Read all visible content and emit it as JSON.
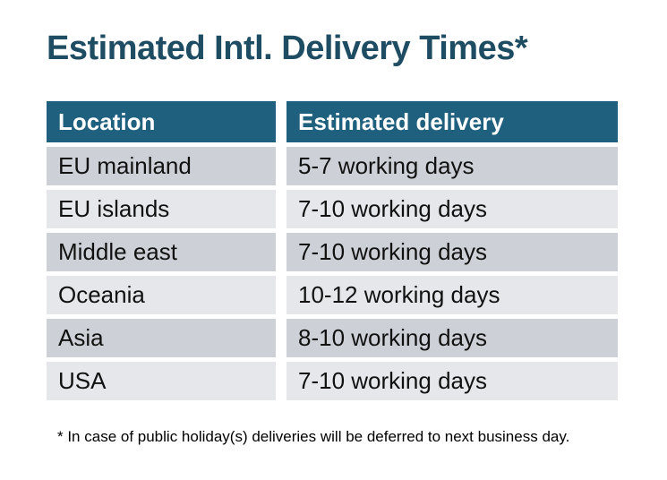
{
  "page": {
    "title": "Estimated Intl. Delivery Times*",
    "footnote": "* In case of public holiday(s) deliveries will be deferred to next business day."
  },
  "table": {
    "headers": {
      "location": "Location",
      "delivery": "Estimated delivery"
    },
    "rows": [
      {
        "location": "EU mainland",
        "delivery": "5-7 working days"
      },
      {
        "location": "EU islands",
        "delivery": "7-10 working days"
      },
      {
        "location": "Middle east",
        "delivery": "7-10 working days"
      },
      {
        "location": "Oceania",
        "delivery": "10-12 working days"
      },
      {
        "location": "Asia",
        "delivery": "8-10 working days"
      },
      {
        "location": "USA",
        "delivery": "7-10 working days"
      }
    ]
  },
  "colors": {
    "title_text": "#1d4c63",
    "header_bg": "#20607f",
    "header_text": "#ffffff",
    "row_alt_dark": "#cdd1d7",
    "row_alt_light": "#e5e7ea",
    "body_text": "#111111",
    "page_bg": "#ffffff"
  }
}
